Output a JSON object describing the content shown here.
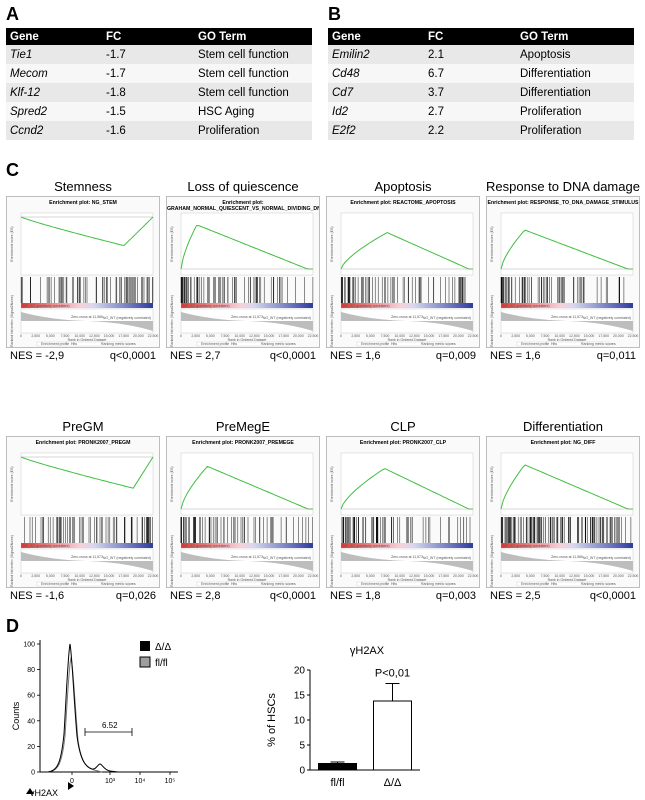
{
  "panels": {
    "a": "A",
    "b": "B",
    "c": "C",
    "d": "D"
  },
  "table_a": {
    "headers": [
      "Gene",
      "FC",
      "GO Term"
    ],
    "rows": [
      [
        "Tie1",
        "-1.7",
        "Stem cell function"
      ],
      [
        "Mecom",
        "-1.7",
        "Stem cell function"
      ],
      [
        "Klf-12",
        "-1.8",
        "Stem cell function"
      ],
      [
        "Spred2",
        "-1.5",
        "HSC Aging"
      ],
      [
        "Ccnd2",
        "-1.6",
        "Proliferation"
      ]
    ]
  },
  "table_b": {
    "headers": [
      "Gene",
      "FC",
      "GO Term"
    ],
    "rows": [
      [
        "Emilin2",
        "2.1",
        "Apoptosis"
      ],
      [
        "Cd48",
        "6.7",
        "Differentiation"
      ],
      [
        "Cd7",
        "3.7",
        "Differentiation"
      ],
      [
        "Id2",
        "2.7",
        "Proliferation"
      ],
      [
        "E2f2",
        "2.2",
        "Proliferation"
      ]
    ]
  },
  "gsea_common": {
    "y_axis": "Enrichment score (ES)",
    "x_axis": "Rank in Ordered Dataset",
    "rank_axis": "Ranked list metric (Signal2Noise)",
    "pos_label": "NG_KO (positively correlated)",
    "neg_label": "NG_WT (negatively correlated)",
    "legend": [
      "Enrichment profile",
      "Hits",
      "Ranking metric scores"
    ],
    "x_ticks": [
      "0",
      "2,500",
      "5,000",
      "7,500",
      "10,000",
      "12,500",
      "15,000",
      "17,500",
      "20,000",
      "22,500"
    ]
  },
  "gsea": [
    {
      "title": "Stemness",
      "plot_title": "Enrichment plot: NG_STEM",
      "nes": "NES = -2,9",
      "q": "q<0,0001",
      "zero": "Zero cross at 11,586"
    },
    {
      "title": "Loss of quiescence",
      "plot_title": "Enrichment plot: GRAHAM_NORMAL_QUIESCENT_VS_NORMAL_DIVIDING_DN",
      "nes": "NES = 2,7",
      "q": "q<0,0001",
      "zero": "Zero cross at 11,573"
    },
    {
      "title": "Apoptosis",
      "plot_title": "Enrichment plot: REACTOME_APOPTOSIS",
      "nes": "NES = 1,6",
      "q": "q=0,009",
      "zero": "Zero cross at 11,573"
    },
    {
      "title": "Response to DNA damage",
      "plot_title": "Enrichment plot: RESPONSE_TO_DNA_DAMAGE_STIMULUS",
      "nes": "NES = 1,6",
      "q": "q=0,011",
      "zero": "Zero cross at 11,573"
    },
    {
      "title": "PreGM",
      "plot_title": "Enrichment plot: PRONK2007_PREGM",
      "nes": "NES = -1,6",
      "q": "q=0,026",
      "zero": "Zero cross at 11,573"
    },
    {
      "title": "PreMegE",
      "plot_title": "Enrichment plot: PRONK2007_PREMEGE",
      "nes": "NES = 2,8",
      "q": "q<0,0001",
      "zero": "Zero cross at 11,573"
    },
    {
      "title": "CLP",
      "plot_title": "Enrichment plot: PRONK2007_CLP",
      "nes": "NES = 1,8",
      "q": "q=0,003",
      "zero": "Zero cross at 11,573"
    },
    {
      "title": "Differentiation",
      "plot_title": "Enrichment plot: NG_DIFF",
      "nes": "NES = 2,5",
      "q": "q<0,0001",
      "zero": "Zero cross at 11,586"
    }
  ],
  "flow": {
    "ylabel": "Counts",
    "xlabel": "γH2AX",
    "y_ticks": [
      "0",
      "20",
      "40",
      "60",
      "80",
      "100"
    ],
    "x_ticks": [
      "0",
      "10³",
      "10⁴",
      "10⁵"
    ],
    "gate_value": "6.52",
    "legend": [
      "Δ/Δ",
      "fl/fl"
    ]
  },
  "chart_data": {
    "type": "bar",
    "title": "γH2AX",
    "categories": [
      "fl/fl",
      "Δ/Δ"
    ],
    "values": [
      1.3,
      13.8
    ],
    "errors": [
      0.3,
      3.5
    ],
    "ylabel": "% of HSCs",
    "ylim": [
      0,
      20
    ],
    "y_ticks": [
      "0",
      "5",
      "10",
      "15",
      "20"
    ],
    "annotation": "P<0,01",
    "colors": [
      "#000000",
      "#ffffff"
    ]
  }
}
